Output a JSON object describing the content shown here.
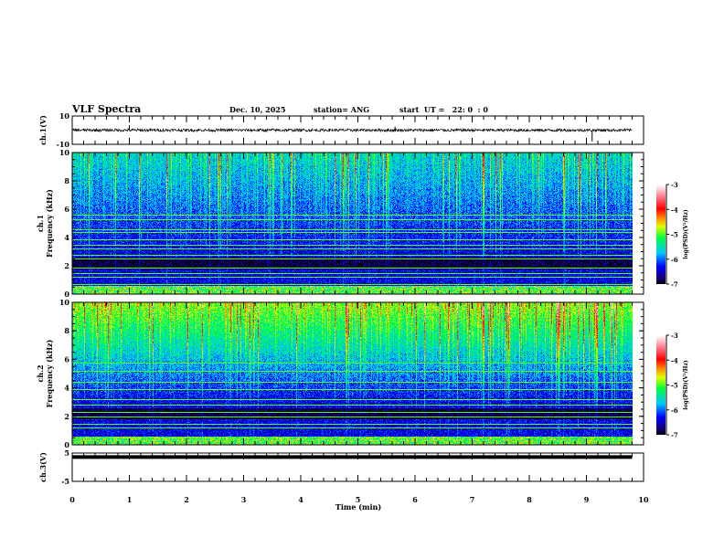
{
  "header": {
    "title": "VLF Spectra",
    "date": "Dec. 10, 2025",
    "station": "station= ANG",
    "start": "start  UT =   22: 0  : 0"
  },
  "chart_data": [
    {
      "type": "line",
      "name": "ch1-waveform",
      "ylabel": "ch.1(V)",
      "ylim": [
        -10,
        10
      ],
      "yticks": [
        "10",
        "-10"
      ],
      "xlim": [
        0,
        10
      ],
      "baseline": 0,
      "noise_amplitude": 1,
      "spikes": [
        {
          "x": 1.0,
          "y": 3.5
        },
        {
          "x": 5.65,
          "y": 2.5
        },
        {
          "x": 9.1,
          "y": -8
        }
      ],
      "data_end": 9.8
    },
    {
      "type": "heatmap",
      "name": "ch1-spectrogram",
      "ylabel": "ch.1 Frequency (kHz)",
      "ylim": [
        0,
        10
      ],
      "yticks": [
        "0",
        "2",
        "4",
        "6",
        "8",
        "10"
      ],
      "xlim": [
        0,
        10
      ],
      "data_end": 9.8,
      "background_low_freq": -6.4,
      "background_high_freq": -5.7,
      "line_frequencies_khz": [
        0.7,
        1.2,
        1.5,
        1.9,
        2.5,
        2.8,
        3.2,
        3.5,
        3.9,
        4.4,
        4.6,
        5.3,
        5.6
      ],
      "colorbar": {
        "label": "log(PSD)(V²/Hz)",
        "range": [
          -7,
          -3
        ],
        "ticks": [
          "-3",
          "-4",
          "-5",
          "-6",
          "-7"
        ]
      }
    },
    {
      "type": "heatmap",
      "name": "ch2-spectrogram",
      "ylabel": "ch.2 Frequency (kHz)",
      "ylim": [
        0,
        10
      ],
      "yticks": [
        "0",
        "2",
        "4",
        "6",
        "8",
        "10"
      ],
      "xlim": [
        0,
        10
      ],
      "data_end": 9.8,
      "background_low_freq": -6.4,
      "background_high_freq": -5.0,
      "line_frequencies_khz": [
        1.2,
        1.5,
        2.0,
        2.3,
        2.8,
        3.2,
        3.9,
        4.4,
        5.2,
        5.8
      ],
      "colorbar": {
        "label": "log(PSD)(V²/Hz)",
        "range": [
          -7,
          -3
        ],
        "ticks": [
          "-3",
          "-4",
          "-5",
          "-6",
          "-7"
        ]
      }
    },
    {
      "type": "line",
      "name": "ch3-waveform",
      "ylabel": "ch.3(V)",
      "ylim": [
        -5,
        5
      ],
      "yticks": [
        "5",
        "-5"
      ],
      "xlim": [
        0,
        10
      ],
      "baseline": 0.3,
      "data_end": 9.8,
      "xlabel": "Time  (min)",
      "xticks": [
        "0",
        "1",
        "2",
        "3",
        "4",
        "5",
        "6",
        "7",
        "8",
        "9",
        "10"
      ]
    }
  ]
}
